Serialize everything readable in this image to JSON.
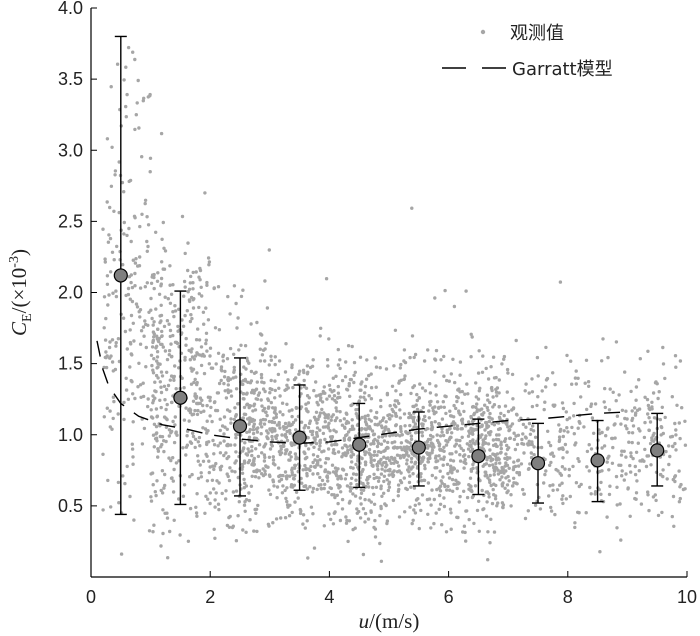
{
  "chart_data": {
    "type": "scatter",
    "xlabel": {
      "var": "u",
      "rest": "/(m/s)"
    },
    "ylabel": {
      "var": "C",
      "sub": "E",
      "rest": "/(×10",
      "sup": "-3",
      "close": ")"
    },
    "xlim": [
      0,
      10
    ],
    "ylim": [
      0,
      4.0
    ],
    "x_ticks": [
      0,
      2,
      4,
      6,
      8,
      10
    ],
    "y_ticks": [
      0.5,
      1.0,
      1.5,
      2.0,
      2.5,
      3.0,
      3.5,
      4.0
    ],
    "x_tick_labels": [
      "0",
      "2",
      "4",
      "6",
      "8",
      "10"
    ],
    "y_tick_labels": [
      "0.5",
      "1.0",
      "1.5",
      "2.0",
      "2.5",
      "3.0",
      "3.5",
      "4.0"
    ],
    "grid": false,
    "legend_position": "top-right",
    "legend": {
      "observed": "观测值",
      "model": "Garratt模型"
    },
    "colors": {
      "observed": "#a6a6a6",
      "bin_marker_fill": "#7f7f7f",
      "line": "#000000"
    },
    "binned_means": [
      {
        "x": 0.5,
        "y": 2.12,
        "low": 0.44,
        "high": 3.8
      },
      {
        "x": 1.5,
        "y": 1.26,
        "low": 0.51,
        "high": 2.01
      },
      {
        "x": 2.5,
        "y": 1.06,
        "low": 0.57,
        "high": 1.54
      },
      {
        "x": 3.5,
        "y": 0.98,
        "low": 0.61,
        "high": 1.35
      },
      {
        "x": 4.5,
        "y": 0.93,
        "low": 0.63,
        "high": 1.22
      },
      {
        "x": 5.5,
        "y": 0.91,
        "low": 0.64,
        "high": 1.16
      },
      {
        "x": 6.5,
        "y": 0.85,
        "low": 0.58,
        "high": 1.11
      },
      {
        "x": 7.5,
        "y": 0.8,
        "low": 0.52,
        "high": 1.08
      },
      {
        "x": 8.5,
        "y": 0.82,
        "low": 0.53,
        "high": 1.1
      },
      {
        "x": 9.5,
        "y": 0.89,
        "low": 0.64,
        "high": 1.15
      }
    ],
    "model_curve": {
      "x": [
        0.1,
        0.2,
        0.3,
        0.5,
        0.8,
        1.2,
        1.6,
        2.0,
        2.5,
        3.0,
        3.5,
        4.0,
        4.5,
        5.0,
        5.5,
        6.0,
        6.5,
        7.0,
        7.5,
        8.0,
        8.5,
        9.0
      ],
      "y": [
        1.66,
        1.46,
        1.34,
        1.22,
        1.13,
        1.07,
        1.04,
        1.0,
        0.97,
        0.95,
        0.94,
        0.95,
        0.98,
        1.01,
        1.04,
        1.06,
        1.08,
        1.1,
        1.11,
        1.13,
        1.15,
        1.16
      ]
    },
    "observed_points_count": 3000
  }
}
